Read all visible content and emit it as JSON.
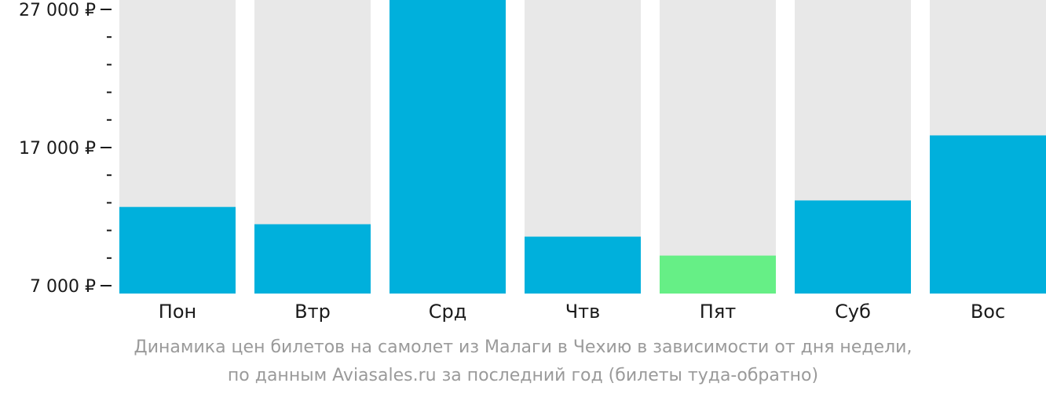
{
  "chart_data": {
    "type": "bar",
    "categories": [
      "Пон",
      "Втр",
      "Срд",
      "Чтв",
      "Пят",
      "Суб",
      "Вос"
    ],
    "values": [
      12700,
      11450,
      27820,
      10550,
      9180,
      13170,
      17880
    ],
    "ylim": [
      6700,
      28000
    ],
    "yticks_major": [
      7000,
      17000,
      27000
    ],
    "yticks_major_labels": [
      "7 000 ₽",
      "17 000 ₽",
      "27 000 ₽"
    ],
    "yticks_minor": [
      9000,
      11000,
      13000,
      15000,
      19000,
      21000,
      23000,
      25000
    ],
    "grid": false,
    "highlight_index": 4,
    "colors": {
      "bar": "#00b0dc",
      "bar_highlight": "#66ef86",
      "track": "#e8e8e8",
      "axis": "#1a1a1a"
    },
    "caption": [
      "Динамика цен билетов на самолет из Малаги в Чехию в зависимости от дня недели,",
      "по данным Aviasales.ru за последний год (билеты туда-обратно)"
    ]
  }
}
